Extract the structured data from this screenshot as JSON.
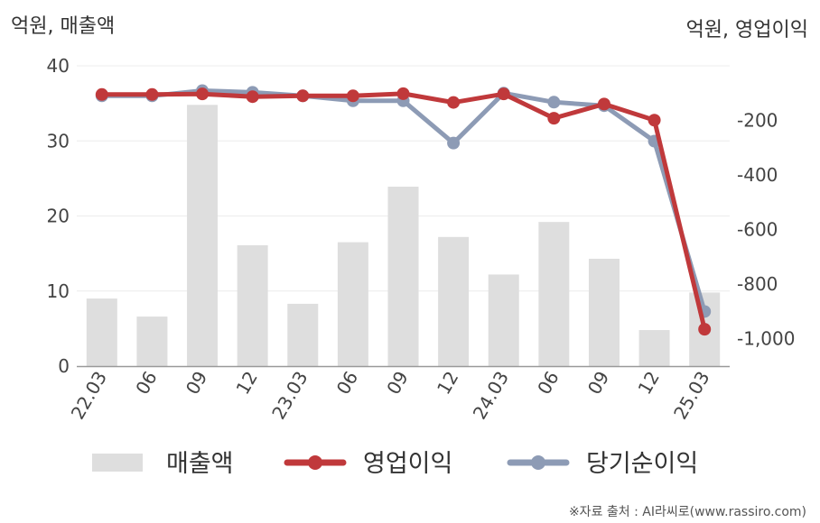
{
  "chart_data": {
    "type": "bar+line",
    "unit_left": "억원, 매출액",
    "unit_right": "억원, 영업이익",
    "categories": [
      "22.03",
      "06",
      "09",
      "12",
      "23.03",
      "06",
      "09",
      "12",
      "24.03",
      "06",
      "09",
      "12",
      "25.03"
    ],
    "left_axis": {
      "min": 0,
      "max": 40,
      "ticks": [
        0,
        10,
        20,
        30,
        40
      ]
    },
    "right_axis": {
      "min": -1100,
      "max": 0,
      "ticks": [
        -200,
        -400,
        -600,
        -800,
        -1000
      ],
      "tick_labels": [
        "-200",
        "-400",
        "-600",
        "-800",
        "-1,000"
      ]
    },
    "series": [
      {
        "name": "매출액",
        "kind": "bar",
        "axis": "left",
        "color": "#dedede",
        "values": [
          9,
          6.6,
          34.8,
          16.1,
          8.3,
          16.5,
          23.9,
          17.2,
          12.2,
          19.2,
          14.3,
          4.8,
          9.8
        ]
      },
      {
        "name": "영업이익",
        "kind": "line",
        "axis": "right",
        "color": "#c0393b",
        "values": [
          -105,
          -105,
          -103,
          -113,
          -110,
          -110,
          -102,
          -134,
          -103,
          -192,
          -140,
          -199,
          -965
        ]
      },
      {
        "name": "당기순이익",
        "kind": "line",
        "axis": "right",
        "color": "#8d9bb5",
        "values": [
          -110,
          -110,
          -91,
          -97,
          -110,
          -128,
          -128,
          -283,
          -100,
          -133,
          -146,
          -276,
          -900
        ]
      }
    ],
    "grid": true,
    "legend_position": "bottom"
  },
  "source_text": "※자료 출처 : AI라씨로(www.rassiro.com)"
}
